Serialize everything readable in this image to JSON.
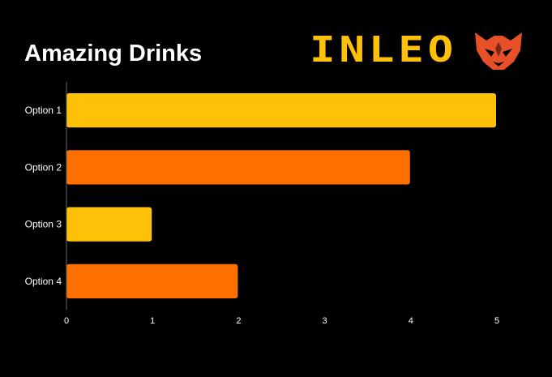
{
  "brand": {
    "name": "INLEO",
    "text_color": "#FFC107",
    "mark_color": "#E8502A",
    "mark_icon": "lion-head-icon"
  },
  "chart_data": {
    "type": "bar",
    "orientation": "horizontal",
    "title": "Amazing Drinks",
    "xlabel": "",
    "ylabel": "",
    "categories": [
      "Option 1",
      "Option 2",
      "Option 3",
      "Option 4"
    ],
    "values": [
      5,
      4,
      1,
      2
    ],
    "bar_colors": [
      "#FFC107",
      "#FF6F00",
      "#FFC107",
      "#FF6F00"
    ],
    "xlim": [
      0,
      5
    ],
    "x_ticks": [
      "0",
      "1",
      "2",
      "3",
      "4",
      "5"
    ],
    "grid": false,
    "legend": "none",
    "background": "#000000",
    "axis_color": "#666666",
    "text_color": "#FFFFFF"
  }
}
